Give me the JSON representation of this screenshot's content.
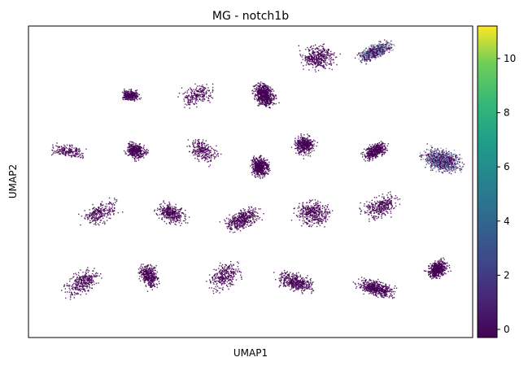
{
  "chart_data": {
    "type": "scatter",
    "title": "MG - notch1b",
    "xlabel": "UMAP1",
    "ylabel": "UMAP2",
    "xticks_visible": false,
    "yticks_visible": false,
    "colorbar": {
      "colormap": "viridis",
      "range": [
        -0.3,
        11.2
      ],
      "ticks": [
        0,
        2,
        4,
        6,
        8,
        10
      ],
      "position": "right"
    },
    "point_color_low": "#440154",
    "point_color_high_cluster": "#6a8fb0",
    "clusters": [
      {
        "id": "c1",
        "x": 0.23,
        "y": 0.78,
        "n": 300
      },
      {
        "id": "c2",
        "x": 0.38,
        "y": 0.78,
        "n": 220
      },
      {
        "id": "c3",
        "x": 0.53,
        "y": 0.78,
        "n": 650
      },
      {
        "id": "c4",
        "x": 0.65,
        "y": 0.9,
        "n": 380
      },
      {
        "id": "c5",
        "x": 0.78,
        "y": 0.92,
        "n": 650
      },
      {
        "id": "c6",
        "x": 0.09,
        "y": 0.6,
        "n": 200
      },
      {
        "id": "c7",
        "x": 0.24,
        "y": 0.6,
        "n": 360
      },
      {
        "id": "c8",
        "x": 0.39,
        "y": 0.6,
        "n": 260
      },
      {
        "id": "c9",
        "x": 0.52,
        "y": 0.55,
        "n": 560
      },
      {
        "id": "c10",
        "x": 0.62,
        "y": 0.62,
        "n": 420
      },
      {
        "id": "c11",
        "x": 0.78,
        "y": 0.6,
        "n": 420
      },
      {
        "id": "c12",
        "x": 0.93,
        "y": 0.57,
        "n": 900
      },
      {
        "id": "c13",
        "x": 0.16,
        "y": 0.4,
        "n": 260
      },
      {
        "id": "c14",
        "x": 0.32,
        "y": 0.4,
        "n": 360
      },
      {
        "id": "c15",
        "x": 0.48,
        "y": 0.38,
        "n": 420
      },
      {
        "id": "c16",
        "x": 0.64,
        "y": 0.4,
        "n": 400
      },
      {
        "id": "c17",
        "x": 0.79,
        "y": 0.42,
        "n": 320
      },
      {
        "id": "c18",
        "x": 0.12,
        "y": 0.18,
        "n": 320
      },
      {
        "id": "c19",
        "x": 0.27,
        "y": 0.2,
        "n": 380
      },
      {
        "id": "c20",
        "x": 0.44,
        "y": 0.2,
        "n": 300
      },
      {
        "id": "c21",
        "x": 0.6,
        "y": 0.18,
        "n": 420
      },
      {
        "id": "c22",
        "x": 0.78,
        "y": 0.16,
        "n": 520
      },
      {
        "id": "c23",
        "x": 0.92,
        "y": 0.22,
        "n": 500
      }
    ]
  }
}
